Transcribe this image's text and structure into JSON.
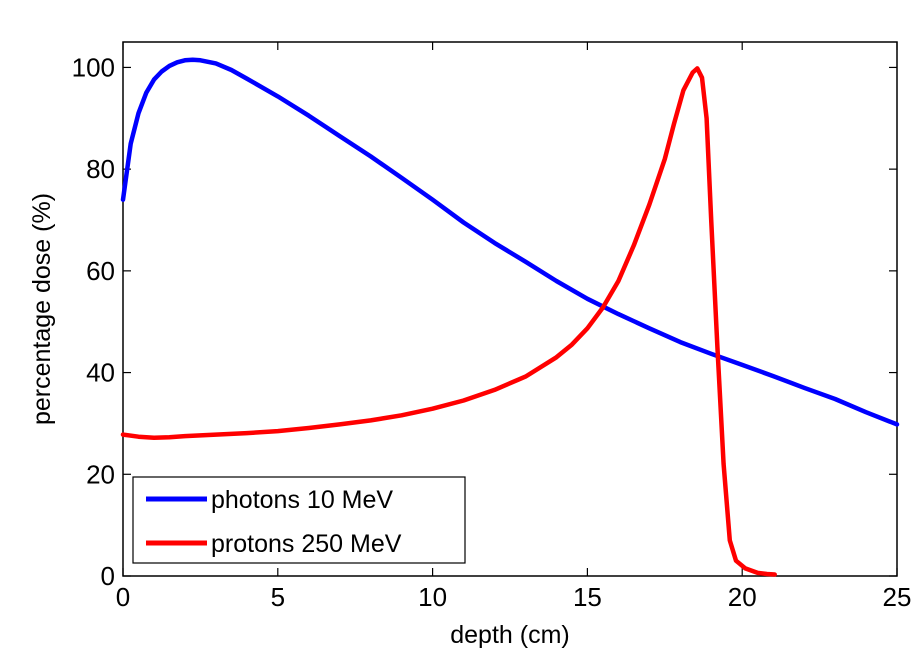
{
  "chart_data": {
    "type": "line",
    "title": "",
    "xlabel": "depth (cm)",
    "ylabel": "percentage dose (%)",
    "xlim": [
      0,
      25
    ],
    "ylim": [
      0,
      105
    ],
    "xticks": [
      "0",
      "5",
      "10",
      "15",
      "20",
      "25"
    ],
    "yticks": [
      "0",
      "20",
      "40",
      "60",
      "80",
      "100"
    ],
    "grid": false,
    "legend_position": "bottom-left",
    "series": [
      {
        "name": "photons 10 MeV",
        "color": "#0000ff",
        "x": [
          0,
          0.25,
          0.5,
          0.75,
          1.0,
          1.25,
          1.5,
          1.75,
          2.0,
          2.25,
          2.5,
          3.0,
          3.5,
          4.0,
          5.0,
          6.0,
          7.0,
          8.0,
          9.0,
          10.0,
          11.0,
          12.0,
          13.0,
          14.0,
          15.0,
          16.0,
          17.0,
          18.0,
          19.0,
          20.0,
          21.0,
          22.0,
          23.0,
          24.0,
          25.0
        ],
        "y": [
          74,
          85,
          91,
          95,
          97.6,
          99.2,
          100.3,
          101.0,
          101.4,
          101.5,
          101.4,
          100.8,
          99.5,
          97.8,
          94.3,
          90.5,
          86.5,
          82.5,
          78.3,
          74.0,
          69.5,
          65.5,
          61.8,
          58.0,
          54.5,
          51.5,
          48.7,
          46.0,
          43.7,
          41.5,
          39.3,
          37.0,
          34.8,
          32.2,
          29.8
        ]
      },
      {
        "name": "protons 250 MeV",
        "color": "#ff0000",
        "x": [
          0,
          0.5,
          1.0,
          1.5,
          2.0,
          3.0,
          4.0,
          5.0,
          6.0,
          7.0,
          8.0,
          9.0,
          10.0,
          11.0,
          12.0,
          13.0,
          14.0,
          14.5,
          15.0,
          15.5,
          16.0,
          16.5,
          17.0,
          17.5,
          17.8,
          18.1,
          18.4,
          18.55,
          18.7,
          18.85,
          19.0,
          19.2,
          19.4,
          19.6,
          19.8,
          20.1,
          20.5,
          20.8,
          21.05
        ],
        "y": [
          27.8,
          27.4,
          27.2,
          27.3,
          27.5,
          27.8,
          28.1,
          28.5,
          29.1,
          29.8,
          30.6,
          31.6,
          32.9,
          34.5,
          36.6,
          39.2,
          43.0,
          45.5,
          48.7,
          52.8,
          58.0,
          65.0,
          73.0,
          82.0,
          89.0,
          95.5,
          99.0,
          99.8,
          98.0,
          90.0,
          70.0,
          45.0,
          22.0,
          7.0,
          3.0,
          1.5,
          0.6,
          0.4,
          0.3
        ]
      }
    ]
  }
}
